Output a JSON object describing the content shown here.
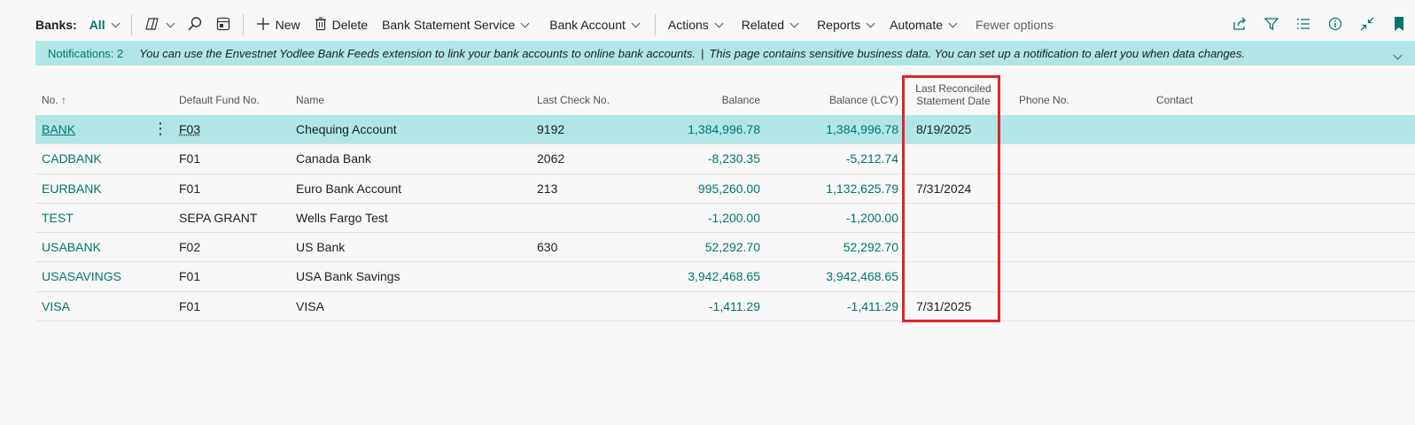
{
  "actionbar": {
    "caption": "Banks:",
    "filter": "All",
    "new_label": "New",
    "delete_label": "Delete",
    "bank_statement_service": "Bank Statement Service",
    "bank_account": "Bank Account",
    "actions": "Actions",
    "related": "Related",
    "reports": "Reports",
    "automate": "Automate",
    "fewer_options": "Fewer options",
    "icons": [
      "copilot-icon",
      "search-icon",
      "layout-icon",
      "share-icon",
      "filter-icon",
      "list-icon",
      "info-icon",
      "collapse-icon",
      "bookmark-icon"
    ]
  },
  "notification": {
    "count": "Notifications: 2",
    "message1": "You can use the Envestnet Yodlee Bank Feeds extension to link your bank accounts to online bank accounts.",
    "separator": "|",
    "message2": "This page contains sensitive business data. You can set up a notification to alert you when data changes."
  },
  "table": {
    "headers": {
      "no": "No. ↑",
      "fund": "Default Fund No.",
      "name": "Name",
      "last_check": "Last Check No.",
      "balance": "Balance",
      "balance_lcy": "Balance (LCY)",
      "last_rec_1": "Last Reconciled",
      "last_rec_2": "Statement Date",
      "phone": "Phone No.",
      "contact": "Contact"
    },
    "rows": [
      {
        "no": "BANK",
        "fund": "F03",
        "name": "Chequing Account",
        "last_check": "9192",
        "balance": "1,384,996.78",
        "balance_lcy": "1,384,996.78",
        "last_rec": "8/19/2025",
        "phone": "",
        "contact": ""
      },
      {
        "no": "CADBANK",
        "fund": "F01",
        "name": "Canada Bank",
        "last_check": "2062",
        "balance": "-8,230.35",
        "balance_lcy": "-5,212.74",
        "last_rec": "",
        "phone": "",
        "contact": ""
      },
      {
        "no": "EURBANK",
        "fund": "F01",
        "name": "Euro Bank Account",
        "last_check": "213",
        "balance": "995,260.00",
        "balance_lcy": "1,132,625.79",
        "last_rec": "7/31/2024",
        "phone": "",
        "contact": ""
      },
      {
        "no": "TEST",
        "fund": "SEPA GRANT",
        "name": "Wells Fargo Test",
        "last_check": "",
        "balance": "-1,200.00",
        "balance_lcy": "-1,200.00",
        "last_rec": "",
        "phone": "",
        "contact": ""
      },
      {
        "no": "USABANK",
        "fund": "F02",
        "name": "US Bank",
        "last_check": "630",
        "balance": "52,292.70",
        "balance_lcy": "52,292.70",
        "last_rec": "",
        "phone": "",
        "contact": ""
      },
      {
        "no": "USASAVINGS",
        "fund": "F01",
        "name": "USA Bank Savings",
        "last_check": "",
        "balance": "3,942,468.65",
        "balance_lcy": "3,942,468.65",
        "last_rec": "",
        "phone": "",
        "contact": ""
      },
      {
        "no": "VISA",
        "fund": "F01",
        "name": "VISA",
        "last_check": "",
        "balance": "-1,411.29",
        "balance_lcy": "-1,411.29",
        "last_rec": "7/31/2025",
        "phone": "",
        "contact": ""
      }
    ],
    "row_menu_glyph": "⋮"
  },
  "colors": {
    "accent": "#00756f",
    "selected_row": "#b0e6e6",
    "notification_bg": "#b0e6e6",
    "highlight_border": "#e0242a"
  }
}
